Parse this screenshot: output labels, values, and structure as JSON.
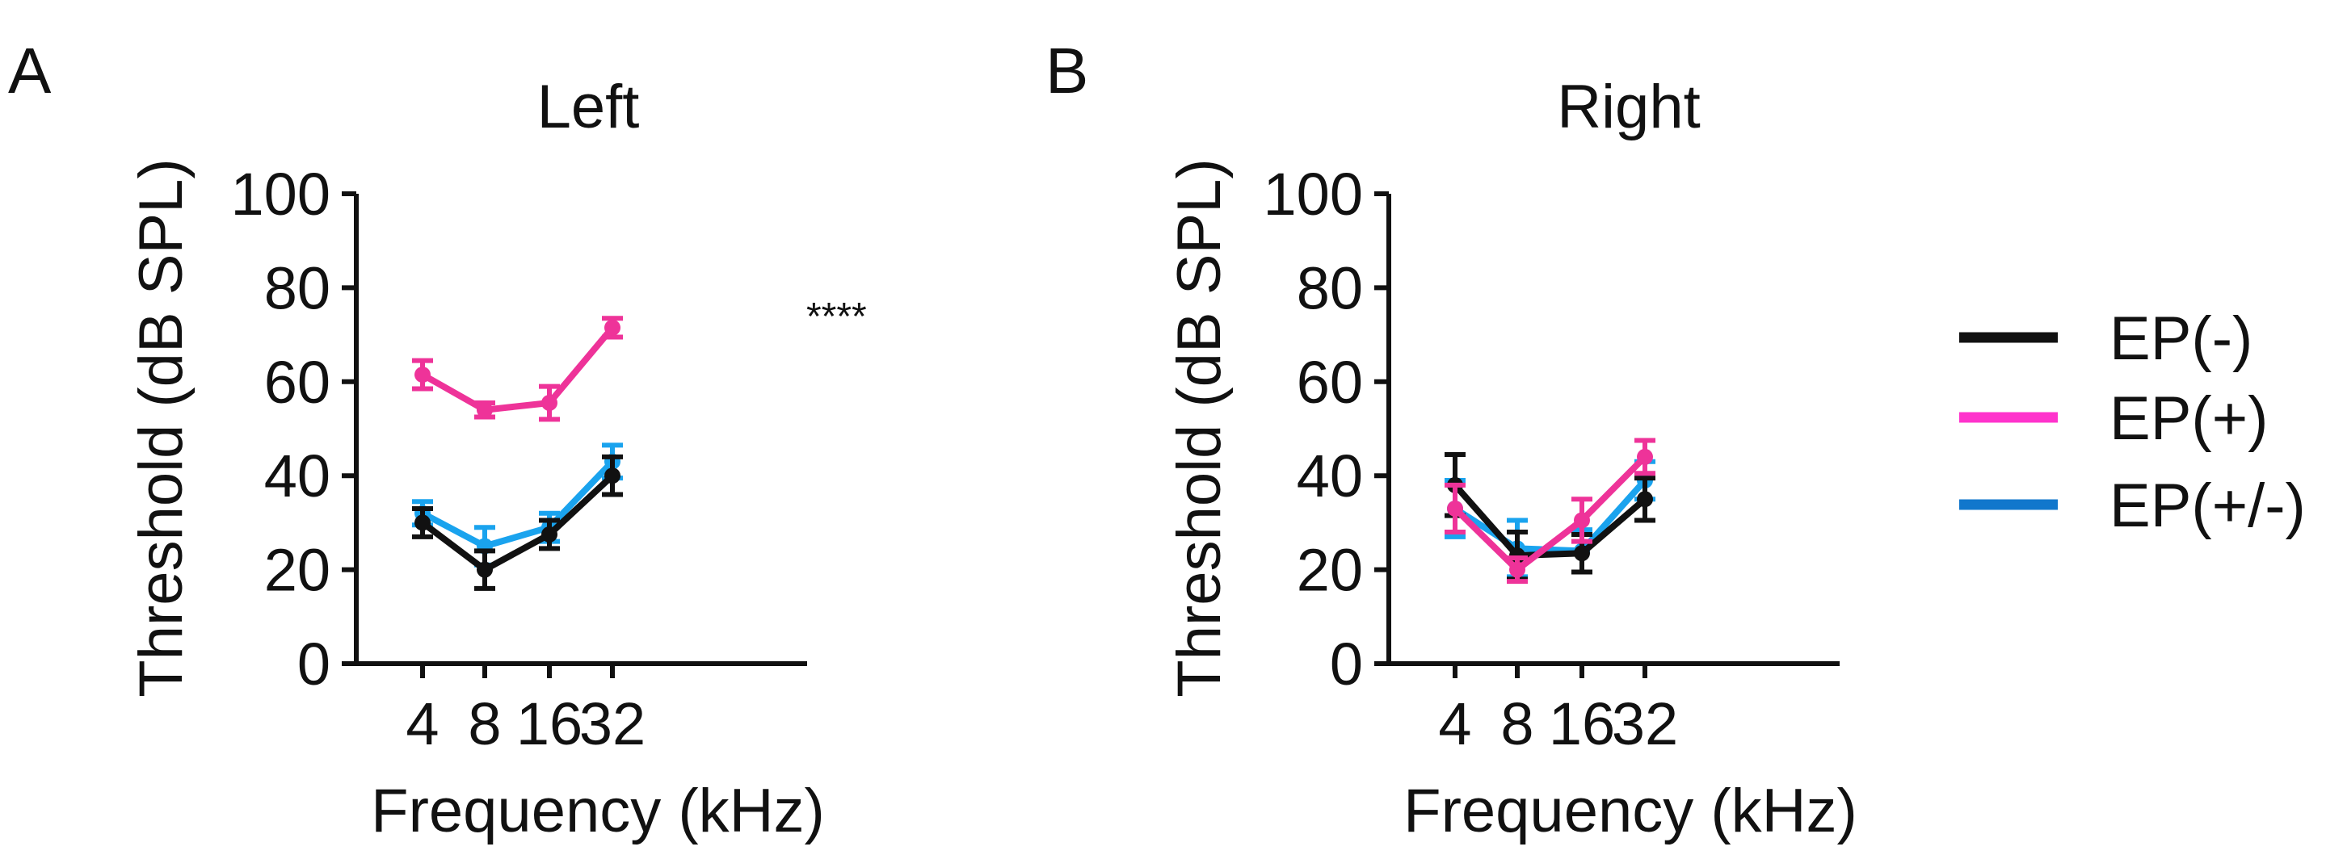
{
  "chart_data": [
    {
      "type": "line",
      "panel_label": "A",
      "title": "Left",
      "xlabel": "Frequency (kHz)",
      "ylabel": "Threshold (dB SPL)",
      "categories": [
        "4",
        "8",
        "16",
        "32"
      ],
      "ylim": [
        0,
        100
      ],
      "yticks": [
        "0",
        "20",
        "40",
        "60",
        "80",
        "100"
      ],
      "series": [
        {
          "name": "EP(-)",
          "color": "#111111",
          "values": [
            30,
            20,
            27.5,
            40
          ],
          "errors": [
            3,
            4,
            3,
            4
          ]
        },
        {
          "name": "EP(+)",
          "color": "#ee3399",
          "values": [
            61.5,
            54,
            55.5,
            71.5
          ],
          "errors": [
            3,
            1.5,
            3.5,
            2
          ]
        },
        {
          "name": "EP(+/-)",
          "color": "#1aa3ee",
          "values": [
            32,
            25,
            29,
            43
          ],
          "errors": [
            2.5,
            4,
            3,
            3.5
          ]
        }
      ],
      "annotation": "****"
    },
    {
      "type": "line",
      "panel_label": "B",
      "title": "Right",
      "xlabel": "Frequency (kHz)",
      "ylabel": "Threshold (dB SPL)",
      "categories": [
        "4",
        "8",
        "16",
        "32"
      ],
      "ylim": [
        0,
        100
      ],
      "yticks": [
        "0",
        "20",
        "40",
        "60",
        "80",
        "100"
      ],
      "series": [
        {
          "name": "EP(-)",
          "color": "#111111",
          "values": [
            38,
            23,
            23.5,
            35
          ],
          "errors": [
            6.5,
            5,
            4,
            4.5
          ]
        },
        {
          "name": "EP(+)",
          "color": "#ee3399",
          "values": [
            33,
            20,
            30.5,
            44
          ],
          "errors": [
            5,
            2.5,
            4.5,
            3.5
          ]
        },
        {
          "name": "EP(+/-)",
          "color": "#1aa3ee",
          "values": [
            33,
            24.5,
            24,
            39
          ],
          "errors": [
            6,
            6,
            4.5,
            4
          ]
        }
      ]
    }
  ],
  "legend": {
    "items": [
      {
        "label": "EP(-)",
        "color": "#111111"
      },
      {
        "label": "EP(+)",
        "color": "#ff33cc"
      },
      {
        "label": "EP(+/-)",
        "color": "#1177cc"
      }
    ]
  }
}
